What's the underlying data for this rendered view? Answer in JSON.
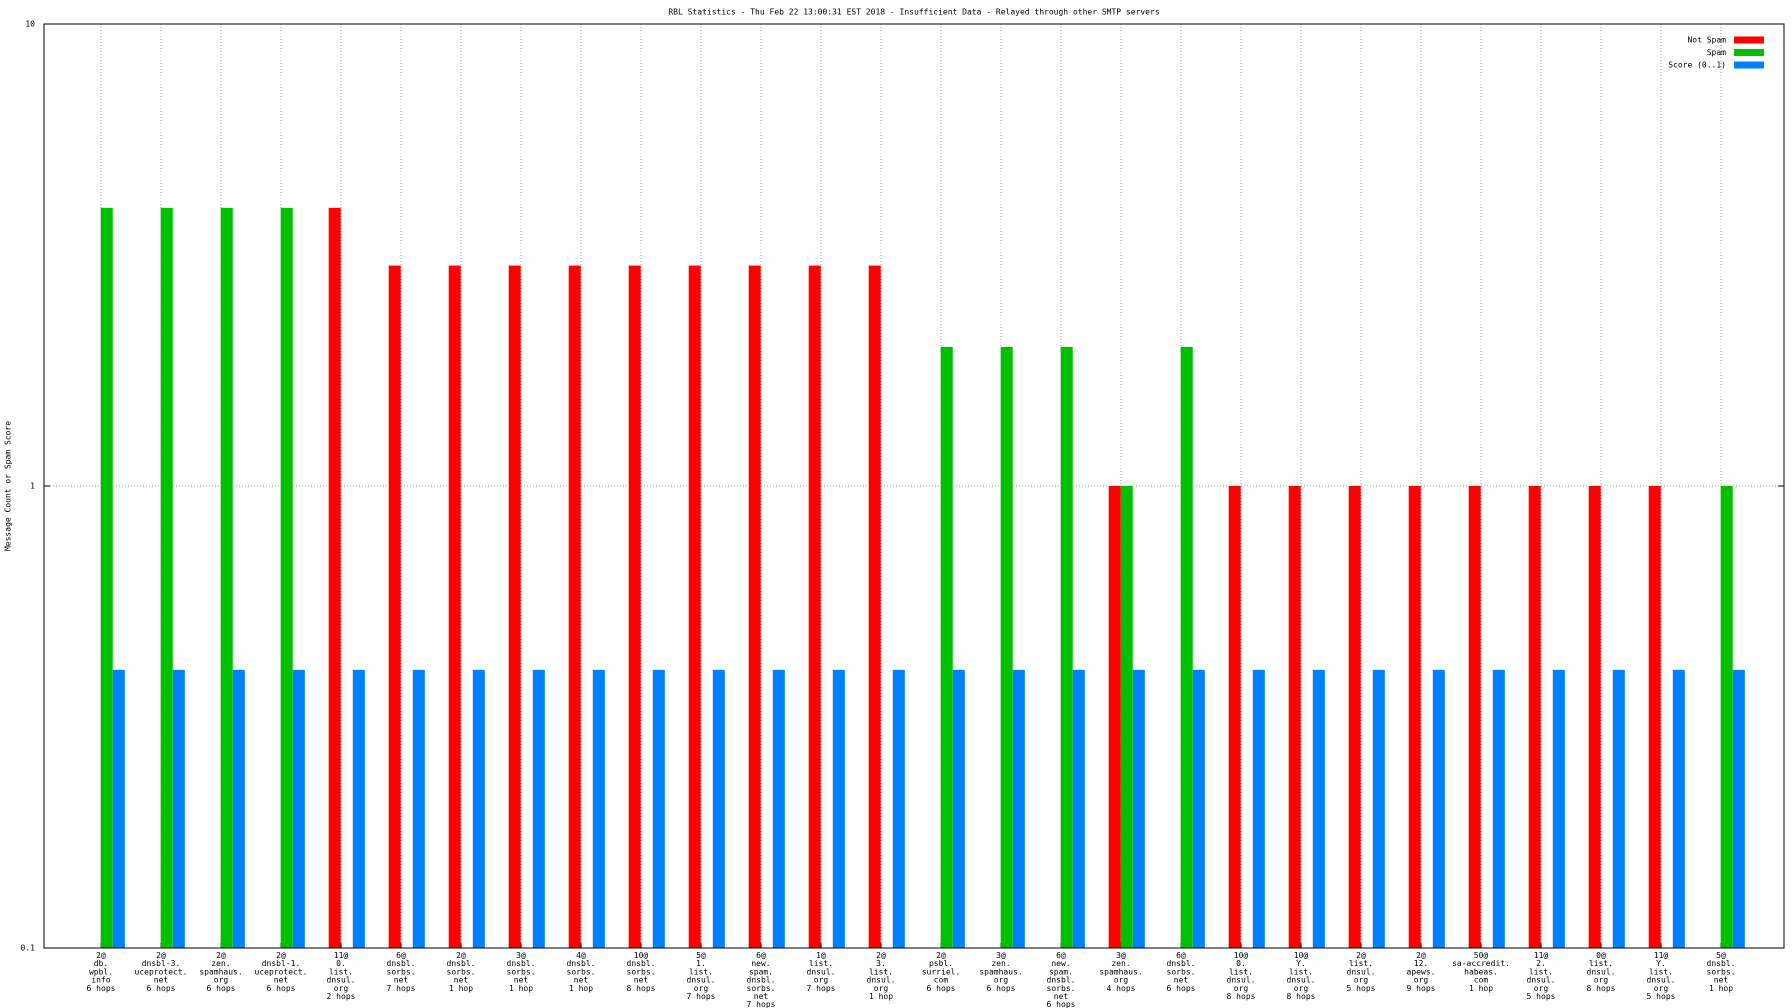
{
  "chart_data": {
    "type": "bar",
    "title": "RBL Statistics - Thu Feb 22 13:00:31 EST 2018 - Insufficient Data - Relayed through other SMTP servers",
    "y_label": "Message Count or Spam Score",
    "log_scale": true,
    "ylim": [
      0.1,
      10
    ],
    "yticks": [
      0.1,
      1,
      10
    ],
    "grid": true,
    "legend": "top right",
    "categories": [
      "2@\ndb.\nwpbl.\ninfo\n6 hops",
      "2@\ndnsbl-3.\nuceprotect.\nnet\n6 hops",
      "2@\nzen.\nspamhaus.\norg\n6 hops",
      "2@\ndnsbl-1.\nuceprotect.\nnet\n6 hops",
      "11@\n0.\nlist.\ndnsul.\norg\n2 hops",
      "6@\ndnsbl.\nsorbs.\nnet\n7 hops",
      "2@\ndnsbl.\nsorbs.\nnet\n1 hop",
      "3@\ndnsbl.\nsorbs.\nnet\n1 hop",
      "4@\ndnsbl.\nsorbs.\nnet\n1 hop",
      "10@\ndnsbl.\nsorbs.\nnet\n8 hops",
      "5@\n1.\nlist.\ndnsul.\norg\n7 hops",
      "6@\nnew.\nspam.\ndnsbl.\nsorbs.\nnet\n7 hops",
      "1@\nlist.\ndnsul.\norg\n7 hops",
      "2@\n3.\nlist.\ndnsul.\norg\n1 hop",
      "2@\npsbl.\nsurriel.\ncom\n6 hops",
      "3@\nzen.\nspamhaus.\norg\n6 hops",
      "6@\nnew.\nspam.\ndnsbl.\nsorbs.\nnet\n6 hops",
      "3@\nzen.\nspamhaus.\norg\n4 hops",
      "6@\ndnsbl.\nsorbs.\nnet\n6 hops",
      "10@\n0.\nlist.\ndnsul.\norg\n8 hops",
      "10@\nY.\nlist.\ndnsul.\norg\n8 hops",
      "2@\nlist.\ndnsul.\norg\n5 hops",
      "2@\n12.\napews.\norg\n9 hops",
      "50@\nsa-accredit.\nhabeas.\ncom\n1 hop",
      "11@\n2.\nlist.\ndnsul.\norg\n5 hops",
      "0@\nlist.\ndnsul.\norg\n8 hops",
      "11@\nY.\nlist.\ndnsul.\norg\n5 hops",
      "5@\ndnsbl.\nsorbs.\nnet\n1 hop"
    ],
    "series": [
      {
        "name": "Not Spam",
        "color": "#ff0000",
        "values": [
          null,
          null,
          null,
          null,
          4,
          3,
          3,
          3,
          3,
          3,
          3,
          3,
          3,
          3,
          null,
          null,
          null,
          1,
          null,
          1,
          1,
          1,
          1,
          1,
          1,
          1,
          1,
          null
        ]
      },
      {
        "name": "Spam",
        "color": "#00c000",
        "values": [
          4,
          4,
          4,
          4,
          null,
          null,
          null,
          null,
          null,
          null,
          null,
          null,
          null,
          null,
          2,
          2,
          2,
          1,
          2,
          null,
          null,
          null,
          null,
          null,
          null,
          null,
          null,
          1
        ]
      },
      {
        "name": "Score (0..1)",
        "color": "#0080ff",
        "values": [
          0.4,
          0.4,
          0.4,
          0.4,
          0.4,
          0.4,
          0.4,
          0.4,
          0.4,
          0.4,
          0.4,
          0.4,
          0.4,
          0.4,
          0.4,
          0.4,
          0.4,
          0.4,
          0.4,
          0.4,
          0.4,
          0.4,
          0.4,
          0.4,
          0.4,
          0.4,
          0.4,
          0.4
        ]
      }
    ]
  }
}
